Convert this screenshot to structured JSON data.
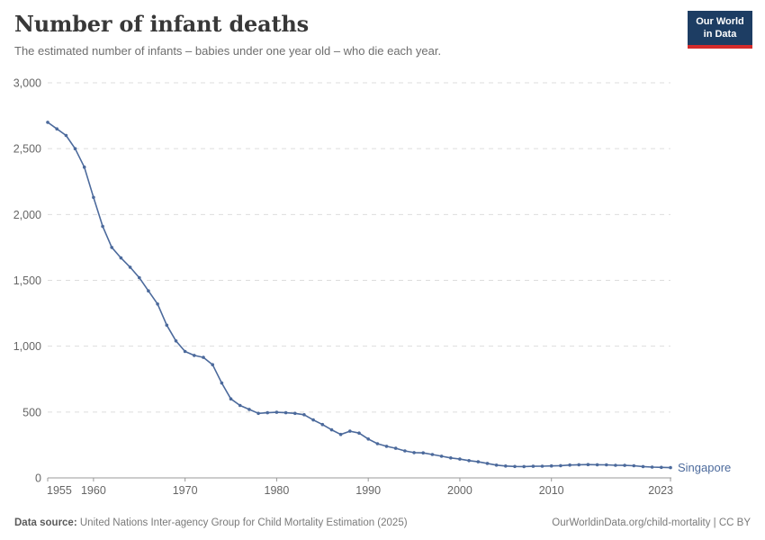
{
  "header": {
    "title": "Number of infant deaths",
    "subtitle": "The estimated number of infants – babies under one year old – who die each year.",
    "logo": {
      "line1": "Our World",
      "line2": "in Data"
    }
  },
  "chart_data": {
    "type": "line",
    "title": "Number of infant deaths",
    "entity": "Singapore",
    "x": [
      1955,
      1956,
      1957,
      1958,
      1959,
      1960,
      1961,
      1962,
      1963,
      1964,
      1965,
      1966,
      1967,
      1968,
      1969,
      1970,
      1971,
      1972,
      1973,
      1974,
      1975,
      1976,
      1977,
      1978,
      1979,
      1980,
      1981,
      1982,
      1983,
      1984,
      1985,
      1986,
      1987,
      1988,
      1989,
      1990,
      1991,
      1992,
      1993,
      1994,
      1995,
      1996,
      1997,
      1998,
      1999,
      2000,
      2001,
      2002,
      2003,
      2004,
      2005,
      2006,
      2007,
      2008,
      2009,
      2010,
      2011,
      2012,
      2013,
      2014,
      2015,
      2016,
      2017,
      2018,
      2019,
      2020,
      2021,
      2022,
      2023
    ],
    "values": [
      2700,
      2650,
      2600,
      2500,
      2360,
      2130,
      1910,
      1750,
      1670,
      1600,
      1520,
      1420,
      1320,
      1160,
      1040,
      960,
      930,
      915,
      860,
      720,
      600,
      550,
      520,
      490,
      495,
      498,
      495,
      490,
      480,
      440,
      405,
      365,
      330,
      355,
      340,
      295,
      260,
      240,
      225,
      205,
      192,
      190,
      178,
      165,
      152,
      143,
      131,
      122,
      110,
      97,
      90,
      87,
      86,
      88,
      89,
      91,
      93,
      98,
      100,
      101,
      100,
      99,
      96,
      95,
      92,
      86,
      82,
      80,
      78
    ],
    "ylim": [
      0,
      3000
    ],
    "yticks": [
      0,
      500,
      1000,
      1500,
      2000,
      2500,
      3000
    ],
    "xticks": [
      1955,
      1960,
      1970,
      1980,
      1990,
      2000,
      2010,
      2023
    ],
    "grid": true,
    "legend_position": "end-of-line",
    "line_color": "#4c6a9c",
    "gridline_color": "#dddddd",
    "axis_color": "#999999",
    "tick_label_color": "#666666"
  },
  "footer": {
    "datasource_label": "Data source:",
    "datasource_text": " United Nations Inter-agency Group for Child Mortality Estimation (2025)",
    "link": "OurWorldinData.org/child-mortality | CC BY"
  }
}
